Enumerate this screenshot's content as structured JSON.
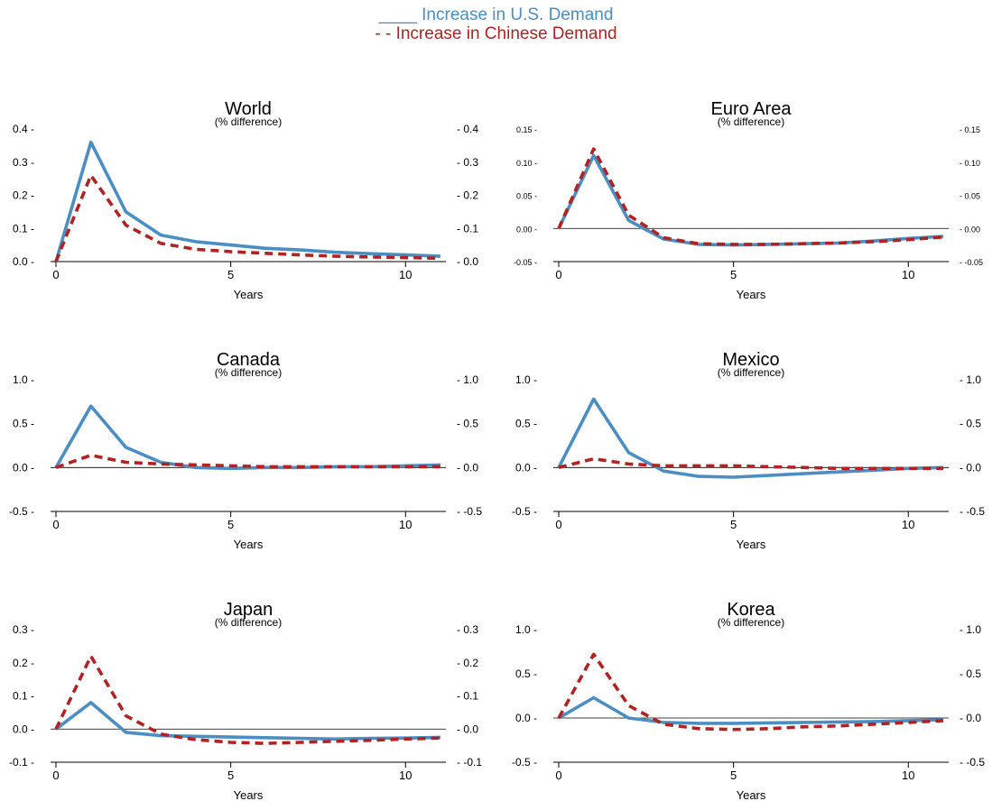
{
  "legend": {
    "us_label": "____ Increase in U.S. Demand",
    "cn_label": "- - Increase in Chinese Demand"
  },
  "colors": {
    "us": "#4a8ec4",
    "cn": "#b22222",
    "axis": "#000000",
    "zero_line": "#000000"
  },
  "chart_data": [
    {
      "type": "line",
      "title": "World",
      "subtitle": "(% difference)",
      "xlabel": "Years",
      "xlim": [
        0,
        11
      ],
      "xticks": [
        0,
        5,
        10
      ],
      "ylim": [
        0,
        0.4
      ],
      "yticks": [
        0.0,
        0.1,
        0.2,
        0.3,
        0.4
      ],
      "ytick_labels": [
        "0.0",
        "0.1",
        "0.2",
        "0.3",
        "0.4"
      ],
      "x": [
        0,
        1,
        2,
        3,
        4,
        5,
        6,
        7,
        8,
        9,
        10,
        11
      ],
      "series": [
        {
          "name": "Increase in U.S. Demand",
          "values": [
            0.0,
            0.36,
            0.15,
            0.08,
            0.06,
            0.05,
            0.04,
            0.035,
            0.028,
            0.024,
            0.02,
            0.016
          ]
        },
        {
          "name": "Increase in Chinese Demand",
          "values": [
            0.0,
            0.26,
            0.11,
            0.055,
            0.037,
            0.03,
            0.025,
            0.02,
            0.016,
            0.014,
            0.012,
            0.01
          ]
        }
      ]
    },
    {
      "type": "line",
      "title": "Euro Area",
      "subtitle": "(% difference)",
      "xlabel": "Years",
      "xlim": [
        0,
        11
      ],
      "xticks": [
        0,
        5,
        10
      ],
      "ylim": [
        -0.05,
        0.15
      ],
      "yticks": [
        -0.05,
        0.0,
        0.05,
        0.1,
        0.15
      ],
      "ytick_labels": [
        "-0.05",
        "0.00",
        "0.05",
        "0.10",
        "0.15"
      ],
      "x": [
        0,
        1,
        2,
        3,
        4,
        5,
        6,
        7,
        8,
        9,
        10,
        11
      ],
      "series": [
        {
          "name": "Increase in U.S. Demand",
          "values": [
            0.0,
            0.11,
            0.012,
            -0.016,
            -0.024,
            -0.025,
            -0.024,
            -0.023,
            -0.022,
            -0.019,
            -0.015,
            -0.012
          ]
        },
        {
          "name": "Increase in Chinese Demand",
          "values": [
            0.0,
            0.12,
            0.02,
            -0.014,
            -0.023,
            -0.024,
            -0.024,
            -0.023,
            -0.022,
            -0.02,
            -0.017,
            -0.013
          ]
        }
      ]
    },
    {
      "type": "line",
      "title": "Canada",
      "subtitle": "(% difference)",
      "xlabel": "Years",
      "xlim": [
        0,
        11
      ],
      "xticks": [
        0,
        5,
        10
      ],
      "ylim": [
        -0.5,
        1.0
      ],
      "yticks": [
        -0.5,
        0.0,
        0.5,
        1.0
      ],
      "ytick_labels": [
        "-0.5",
        "0.0",
        "0.5",
        "1.0"
      ],
      "x": [
        0,
        1,
        2,
        3,
        4,
        5,
        6,
        7,
        8,
        9,
        10,
        11
      ],
      "series": [
        {
          "name": "Increase in U.S. Demand",
          "values": [
            0.0,
            0.7,
            0.23,
            0.06,
            0.0,
            -0.01,
            0.0,
            0.0,
            0.01,
            0.01,
            0.02,
            0.03
          ]
        },
        {
          "name": "Increase in Chinese Demand",
          "values": [
            0.0,
            0.14,
            0.06,
            0.04,
            0.03,
            0.02,
            0.01,
            0.01,
            0.01,
            0.01,
            0.01,
            0.01
          ]
        }
      ]
    },
    {
      "type": "line",
      "title": "Mexico",
      "subtitle": "(% difference)",
      "xlabel": "Years",
      "xlim": [
        0,
        11
      ],
      "xticks": [
        0,
        5,
        10
      ],
      "ylim": [
        -0.5,
        1.0
      ],
      "yticks": [
        -0.5,
        0.0,
        0.5,
        1.0
      ],
      "ytick_labels": [
        "-0.5",
        "0.0",
        "0.5",
        "1.0"
      ],
      "x": [
        0,
        1,
        2,
        3,
        4,
        5,
        6,
        7,
        8,
        9,
        10,
        11
      ],
      "series": [
        {
          "name": "Increase in U.S. Demand",
          "values": [
            0.0,
            0.78,
            0.17,
            -0.04,
            -0.1,
            -0.11,
            -0.09,
            -0.07,
            -0.05,
            -0.03,
            -0.01,
            0.0
          ]
        },
        {
          "name": "Increase in Chinese Demand",
          "values": [
            0.0,
            0.1,
            0.04,
            0.02,
            0.02,
            0.02,
            0.01,
            0.0,
            -0.01,
            -0.01,
            -0.01,
            -0.01
          ]
        }
      ]
    },
    {
      "type": "line",
      "title": "Japan",
      "subtitle": "(% difference)",
      "xlabel": "Years",
      "xlim": [
        0,
        11
      ],
      "xticks": [
        0,
        5,
        10
      ],
      "ylim": [
        -0.1,
        0.3
      ],
      "yticks": [
        -0.1,
        0.0,
        0.1,
        0.2,
        0.3
      ],
      "ytick_labels": [
        "-0.1",
        "0.0",
        "0.1",
        "0.2",
        "0.3"
      ],
      "x": [
        0,
        1,
        2,
        3,
        4,
        5,
        6,
        7,
        8,
        9,
        10,
        11
      ],
      "series": [
        {
          "name": "Increase in U.S. Demand",
          "values": [
            0.0,
            0.08,
            -0.01,
            -0.02,
            -0.022,
            -0.024,
            -0.026,
            -0.028,
            -0.03,
            -0.028,
            -0.027,
            -0.025
          ]
        },
        {
          "name": "Increase in Chinese Demand",
          "values": [
            0.0,
            0.22,
            0.04,
            -0.015,
            -0.032,
            -0.04,
            -0.043,
            -0.04,
            -0.037,
            -0.034,
            -0.03,
            -0.027
          ]
        }
      ]
    },
    {
      "type": "line",
      "title": "Korea",
      "subtitle": "(% difference)",
      "xlabel": "Years",
      "xlim": [
        0,
        11
      ],
      "xticks": [
        0,
        5,
        10
      ],
      "ylim": [
        -0.5,
        1.0
      ],
      "yticks": [
        -0.5,
        0.0,
        0.5,
        1.0
      ],
      "ytick_labels": [
        "-0.5",
        "0.0",
        "0.5",
        "1.0"
      ],
      "x": [
        0,
        1,
        2,
        3,
        4,
        5,
        6,
        7,
        8,
        9,
        10,
        11
      ],
      "series": [
        {
          "name": "Increase in U.S. Demand",
          "values": [
            0.0,
            0.23,
            0.0,
            -0.05,
            -0.06,
            -0.06,
            -0.055,
            -0.05,
            -0.045,
            -0.04,
            -0.03,
            -0.02
          ]
        },
        {
          "name": "Increase in Chinese Demand",
          "values": [
            0.0,
            0.72,
            0.14,
            -0.07,
            -0.12,
            -0.13,
            -0.12,
            -0.1,
            -0.09,
            -0.07,
            -0.05,
            -0.03
          ]
        }
      ]
    }
  ]
}
